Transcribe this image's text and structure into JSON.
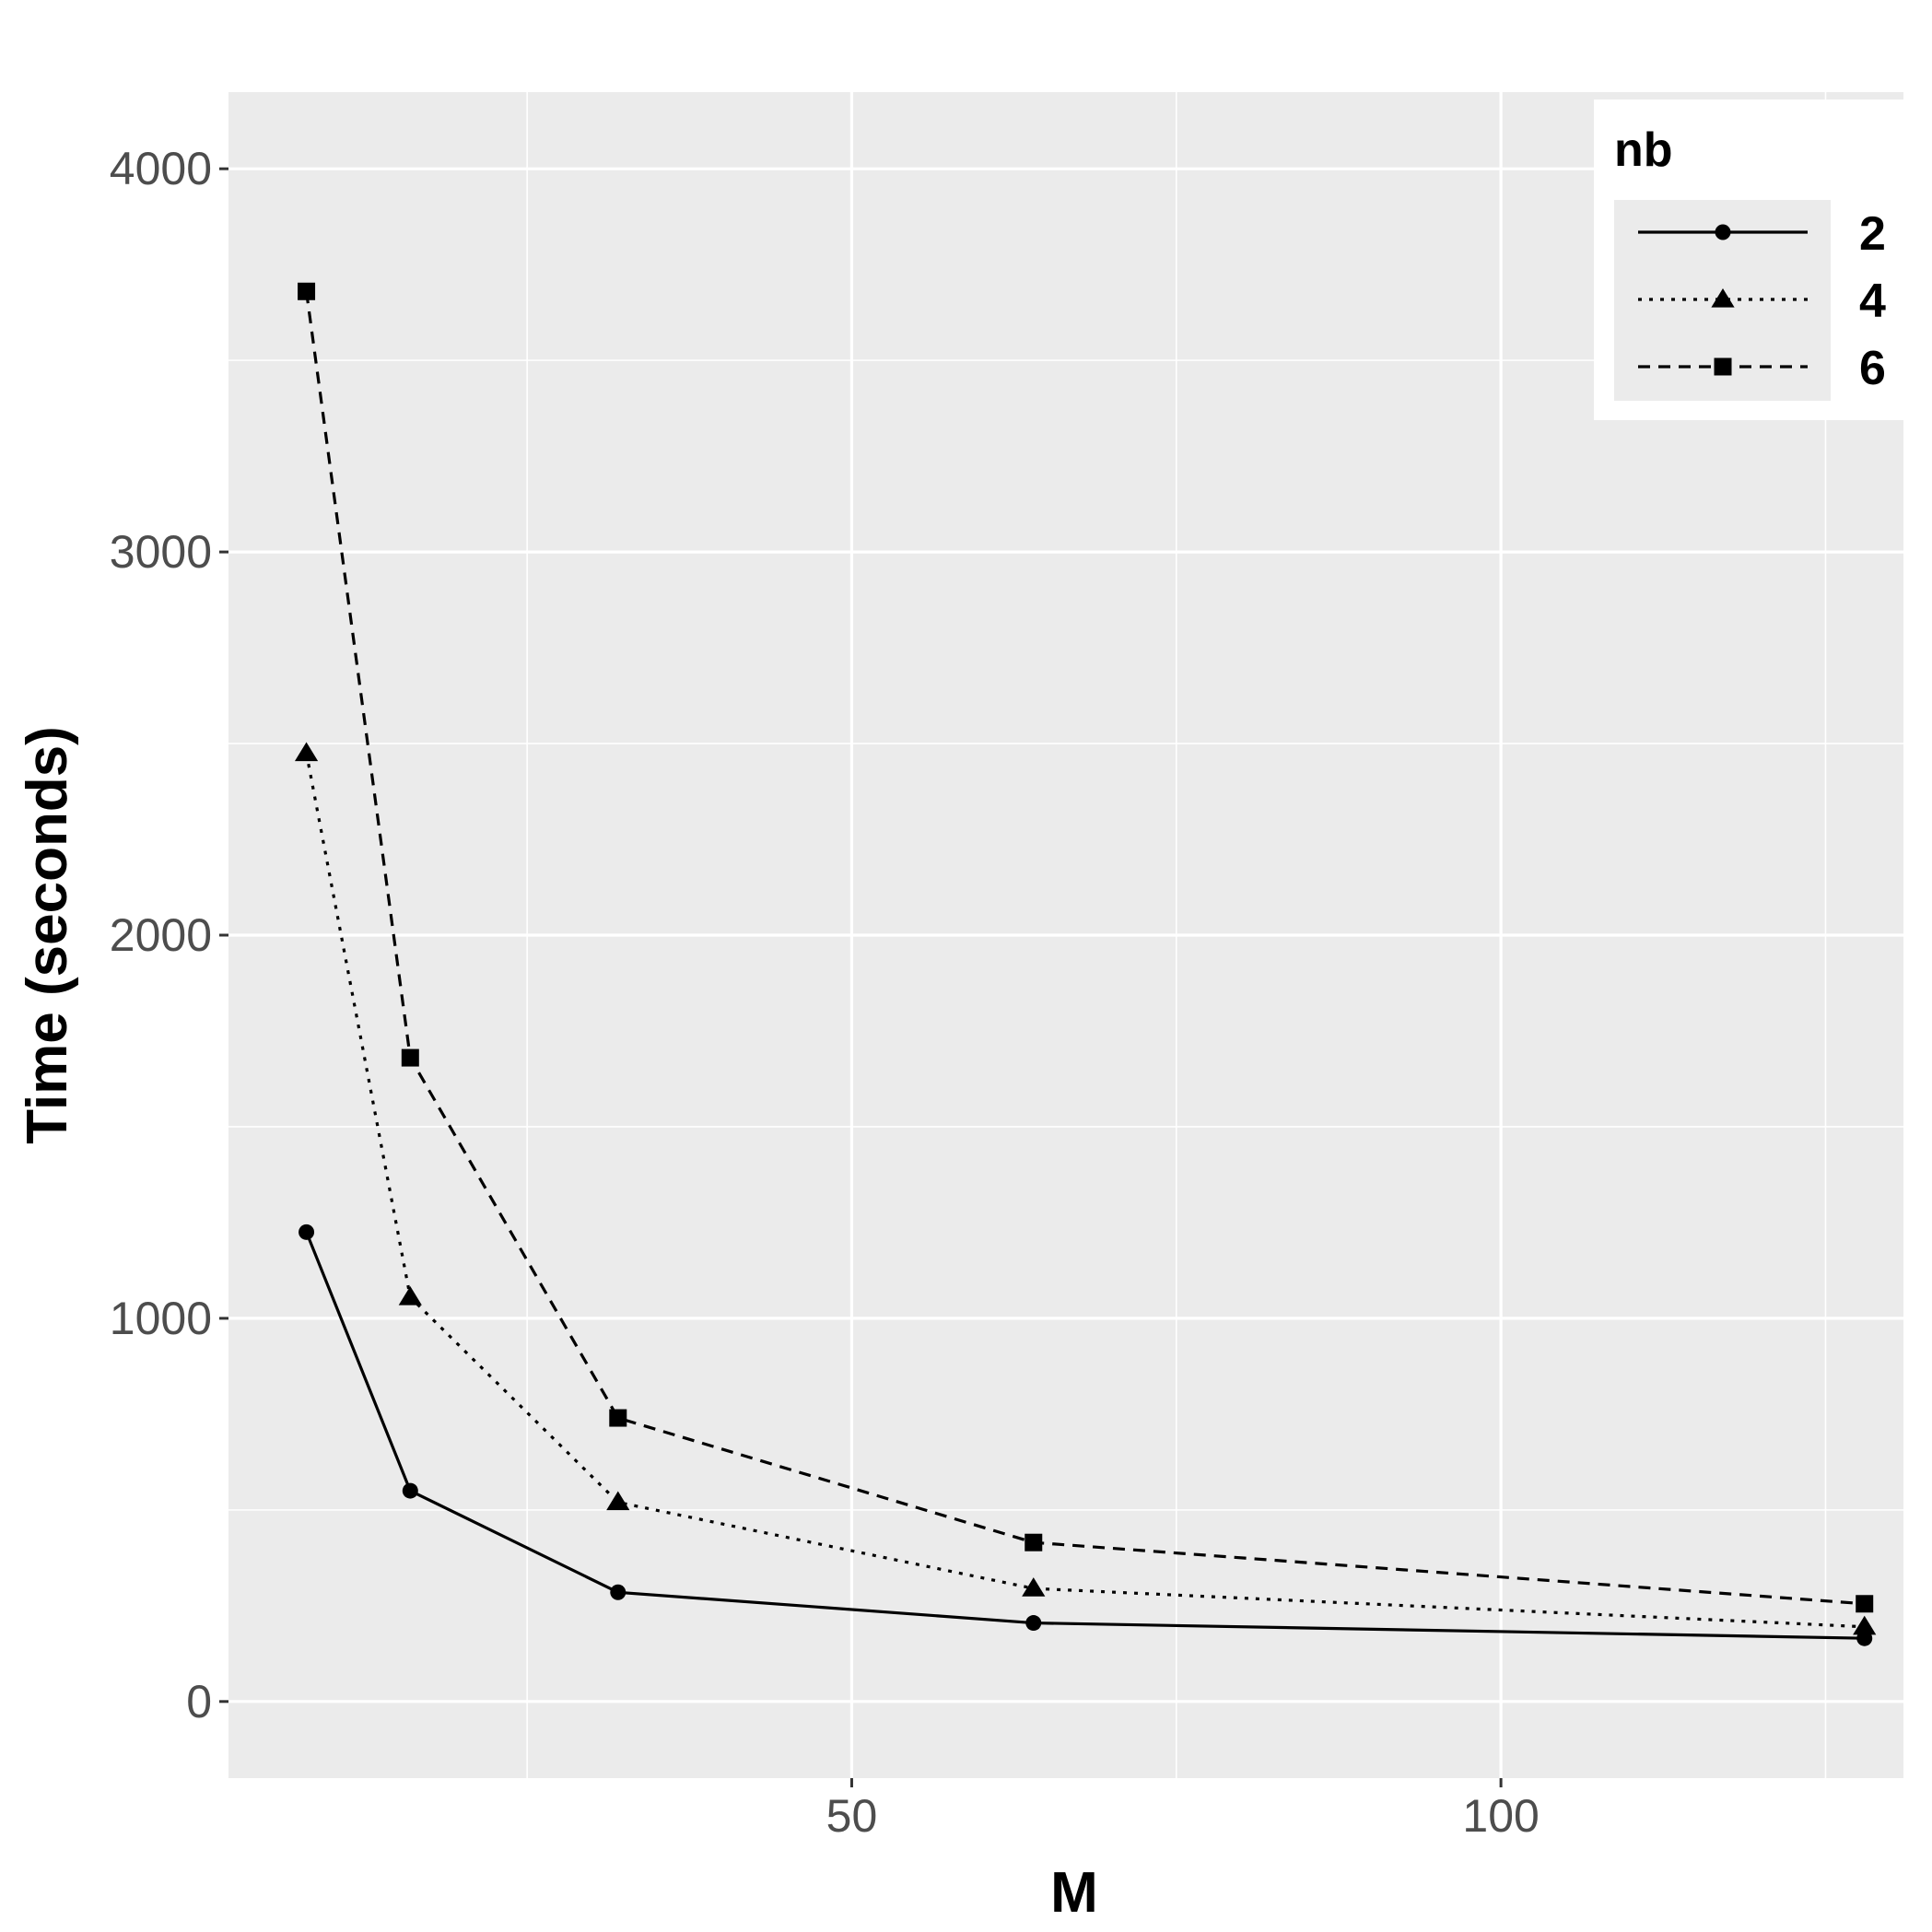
{
  "chart_data": {
    "type": "line",
    "title": "",
    "xlabel": "M",
    "ylabel": "Time (seconds)",
    "xlim": [
      2,
      131
    ],
    "ylim": [
      -200,
      4200
    ],
    "x_ticks": [
      50,
      100
    ],
    "x_minor_ticks": [
      25,
      75,
      125
    ],
    "y_ticks": [
      0,
      1000,
      2000,
      3000,
      4000
    ],
    "y_minor_ticks": [
      500,
      1500,
      2500,
      3500
    ],
    "grid": true,
    "background": "#ebebeb",
    "legend": {
      "title": "nb",
      "position": "top-right"
    },
    "x": [
      8,
      16,
      32,
      64,
      128
    ],
    "series": [
      {
        "name": "2",
        "values": [
          1225,
          550,
          285,
          205,
          165
        ],
        "marker": "circle",
        "linestyle": "solid"
      },
      {
        "name": "4",
        "values": [
          2475,
          1055,
          520,
          295,
          195
        ],
        "marker": "triangle",
        "linestyle": "dotted"
      },
      {
        "name": "6",
        "values": [
          3680,
          1680,
          740,
          415,
          255
        ],
        "marker": "square",
        "linestyle": "dashed"
      }
    ]
  }
}
